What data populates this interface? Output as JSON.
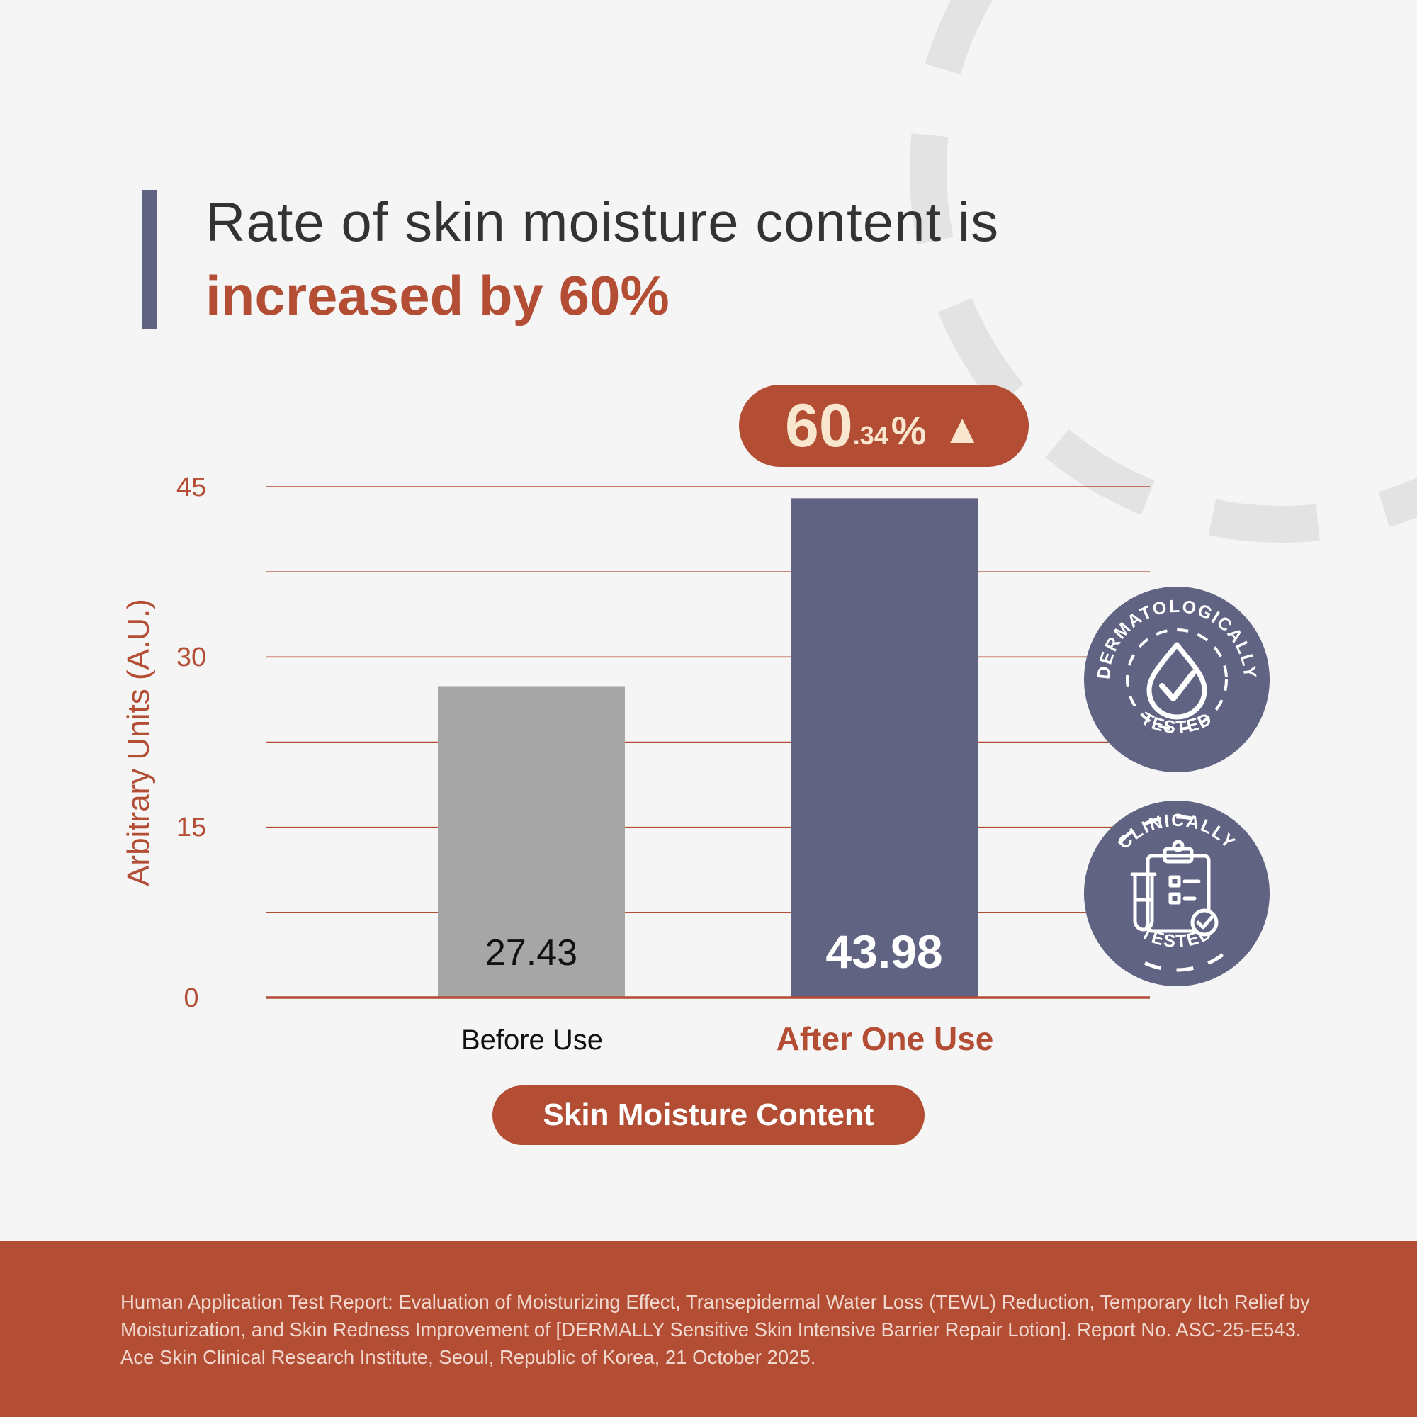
{
  "colors": {
    "background": "#f5f5f5",
    "accent": "#b34d34",
    "navy": "#606382",
    "gray_bar": "#a6a6a6",
    "pill_text": "#f8e6cf",
    "decoration": "#e3e3e3"
  },
  "headline": {
    "line1": "Rate of skin moisture content is",
    "line2": "increased by 60%"
  },
  "increase_badge": {
    "integer": "60",
    "decimal": ".34",
    "percent": "%",
    "arrow": "▲",
    "icon": "up-triangle-icon"
  },
  "chart_data": {
    "type": "bar",
    "categories": [
      "Before Use",
      "After One Use"
    ],
    "values": [
      27.43,
      43.98
    ],
    "value_labels": [
      "27.43",
      "43.98"
    ],
    "bar_colors": [
      "#a6a6a6",
      "#606382"
    ],
    "title": "",
    "xlabel": "Skin Moisture Content",
    "ylabel": "Arbitrary Units (A.U.)",
    "ylim": [
      0,
      45
    ],
    "yticks": [
      0,
      15,
      30,
      45
    ],
    "ytick_labels": [
      "0",
      "15",
      "30",
      "45"
    ],
    "gridlines": [
      7.5,
      15,
      22.5,
      30,
      37.5,
      45
    ],
    "grid": true,
    "increase_label": "60.34%"
  },
  "badges": {
    "dermatologically": {
      "top_text": "DERMATOLOGICALLY",
      "bottom_text": "TESTED",
      "icon": "drop-check-icon"
    },
    "clinically": {
      "top_text": "CLINICALLY",
      "bottom_text": "TESTED",
      "icon": "clipboard-test-tube-icon"
    }
  },
  "footer": {
    "citation": "Human Application Test Report: Evaluation of Moisturizing Effect, Transepidermal Water Loss (TEWL) Reduction, Temporary Itch Relief by Moisturization, and Skin Redness Improvement of [DERMALLY Sensitive Skin Intensive Barrier Repair Lotion]. Report No. ASC-25-E543. Ace Skin Clinical Research Institute, Seoul, Republic of Korea, 21 October 2025."
  }
}
